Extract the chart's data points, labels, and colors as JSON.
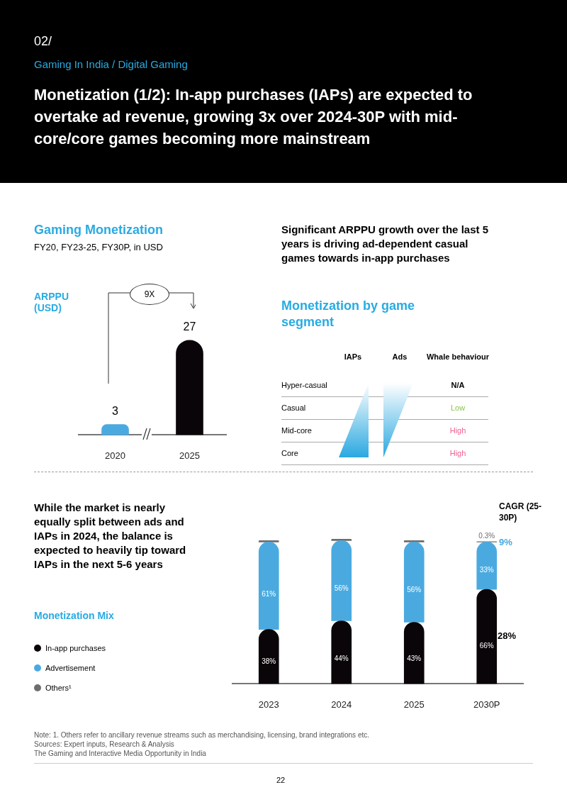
{
  "chart_data": [
    {
      "type": "bar",
      "title": "Gaming Monetization",
      "subtitle": "FY20, FY23-25, FY30P, in USD",
      "ylabel": "ARPPU (USD)",
      "categories": [
        "2020",
        "2025"
      ],
      "values": [
        3,
        27
      ],
      "colors": [
        "#4aaae0",
        "#0a0508"
      ],
      "data_labels": true,
      "annotations": [
        "02/",
        "Gaming In India / Digital Gaming",
        "Monetization (1/2): In-app purchases (IAPs) are expected to overtake ad revenue, growing 3x over 2024-30P with mid-core/core games becoming more mainstream",
        "9X"
      ]
    },
    {
      "type": "other",
      "subtitle": "Significant ARPPU growth over the last 5 years is driving ad-dependent casual games towards in-app purchases",
      "title": "Monetization by game segment",
      "categories": [
        "IAPs",
        "Ads",
        "Whale behaviour"
      ],
      "y_categories": [
        "Hyper-casual",
        "Casual",
        "Mid-core",
        "Core"
      ],
      "annotations": [
        "N/A",
        "Low",
        "High",
        "High"
      ],
      "colors": [
        "#000000",
        "#8bc34a",
        "#f06292",
        "#f06292"
      ]
    },
    {
      "type": "bar",
      "stacked": true,
      "title": "While the market is nearly equally split between ads and IAPs in 2024, the balance is expected to heavily tip toward IAPs in the next 5-6 years",
      "legend_title": "Monetization Mix",
      "legend": "left",
      "categories": [
        "2023",
        "2024",
        "2025",
        "2030P"
      ],
      "series": [
        {
          "name": "In-app purchases",
          "color": "#0a0508",
          "values": [
            38,
            44,
            43,
            66
          ],
          "value_labels": [
            "38%",
            "44%",
            "43%",
            "66%"
          ]
        },
        {
          "name": "Advertisement",
          "color": "#4aaae0",
          "values": [
            61,
            56,
            56,
            33
          ],
          "value_labels": [
            "61%",
            "56%",
            "56%",
            "33%"
          ]
        },
        {
          "name": "Others¹",
          "color": "#6d6d6d",
          "values": [
            1,
            1,
            1,
            0.3
          ],
          "value_labels": [
            null,
            null,
            null,
            "0.3%"
          ]
        }
      ],
      "annotations": [
        "CAGR (25-30P)",
        "9%",
        "28%",
        "Note: 1. Others refer to ancillary revenue streams such as merchandising, licensing, brand integrations etc.",
        "Sources: Expert inputs, Research & Analysis",
        "The Gaming and Interactive Media Opportunity in India",
        "22"
      ]
    }
  ]
}
